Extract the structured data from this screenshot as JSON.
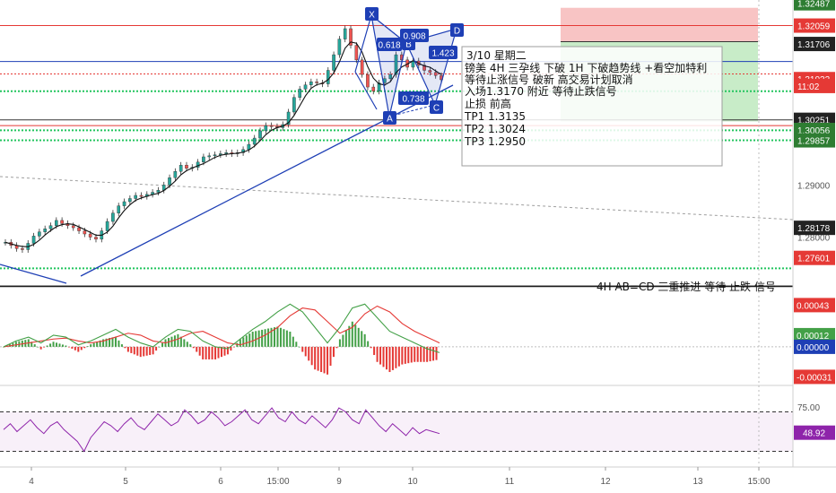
{
  "chart_data": [
    {
      "panel": "price",
      "type": "candlestick",
      "title": "",
      "x_ticks": [
        "4",
        "5",
        "6",
        "15:00",
        "9",
        "10",
        "11",
        "12",
        "13",
        "15:00"
      ],
      "y_ticks": [
        "1.29000",
        "1.28000"
      ],
      "ylim": [
        1.2708,
        1.3255
      ],
      "price_tags": [
        {
          "value": 1.32487,
          "label": "1.32487",
          "color": "#2e7d32"
        },
        {
          "value": 1.32059,
          "label": "1.32059",
          "color": "#e53935"
        },
        {
          "value": 1.31706,
          "label": "1.31706",
          "color": "#222222"
        },
        {
          "value": 1.31032,
          "label": "1.31032",
          "color": "#e53935"
        },
        {
          "value": 1.309,
          "label": "11:02",
          "color": "#e53935"
        },
        {
          "value": 1.30251,
          "label": "1.30251",
          "color": "#222222"
        },
        {
          "value": 1.30056,
          "label": "1.30056",
          "color": "#2e7d32"
        },
        {
          "value": 1.29857,
          "label": "1.29857",
          "color": "#2e7d32"
        },
        {
          "value": 1.28178,
          "label": "1.28178",
          "color": "#222222"
        },
        {
          "value": 1.27601,
          "label": "1.27601",
          "color": "#e53935"
        }
      ],
      "pattern": {
        "points": [
          "X",
          "A",
          "B",
          "C",
          "D"
        ],
        "ratios": [
          "0.618",
          "0.908",
          "1.423",
          "0.738"
        ]
      },
      "annotation": {
        "lines": [
          "3/10 星期二",
          "镑美  4H 三孕线 下破  1H 下破趋势线 +看空加特利",
          " 等待止涨信号  破新 高交易计划取消",
          " 入场1.3170 附近  等待止跌信号",
          " 止损 前高",
          " TP1   1.3135",
          "TP2   1.3024",
          "TP3    1.2950"
        ]
      },
      "bottom_text": "4H  AB=CD  三重推进 等待 止跌 信号",
      "series": [
        {
          "values": [
            1.279,
            1.2784,
            1.2778,
            1.2776,
            1.2788,
            1.2802,
            1.281,
            1.2816,
            1.2822,
            1.2832,
            1.2826,
            1.2822,
            1.2818,
            1.2812,
            1.2806,
            1.28,
            1.2796,
            1.2812,
            1.283,
            1.2846,
            1.286,
            1.2868,
            1.2874,
            1.288,
            1.2878,
            1.2882,
            1.2886,
            1.289,
            1.29,
            1.2914,
            1.2926,
            1.2938,
            1.2932,
            1.2934,
            1.2944,
            1.2954,
            1.2956,
            1.2958,
            1.296,
            1.2962,
            1.296,
            1.2962,
            1.2968,
            1.2978,
            1.299,
            1.3004,
            1.3014,
            1.3012,
            1.301,
            1.3016,
            1.304,
            1.3068,
            1.3084,
            1.3092,
            1.3098,
            1.3096,
            1.3094,
            1.312,
            1.315,
            1.318,
            1.32,
            1.3168,
            1.314,
            1.3112,
            1.3088,
            1.308,
            1.3096,
            1.3104,
            1.3112,
            1.315,
            1.314,
            1.3126,
            1.3138,
            1.313,
            1.312,
            1.3116,
            1.311,
            1.3102
          ]
        }
      ]
    },
    {
      "panel": "macd",
      "type": "line",
      "y_ticks": [
        "0.00043",
        "0.00012",
        "0.00000",
        "-0.00031"
      ],
      "y_values": [
        0.00043,
        0.00012,
        0.0,
        -0.00031
      ],
      "ylim": [
        -0.00038,
        0.0006
      ],
      "series": [
        {
          "color": "#e53935",
          "values": [
            0.0,
            2e-05,
            4e-05,
            6e-05,
            8e-05,
            9e-05,
            6e-05,
            4e-05,
            6e-05,
            0.0001,
            0.00014,
            0.00012,
            6e-05,
            4e-05,
            8e-05,
            0.00014,
            0.00016,
            0.0001,
            4e-05,
            2e-05,
            6e-05,
            0.00012,
            0.0002,
            0.00032,
            0.0004,
            0.00038,
            0.00026,
            0.00014,
            0.0002,
            0.00034,
            0.00042,
            0.00036,
            0.00024,
            0.00016,
            0.0001,
            4e-05
          ]
        },
        {
          "color": "#43a047",
          "values": [
            0.0,
            6e-05,
            0.0001,
            4e-05,
            0.00012,
            0.0001,
            2e-05,
            6e-05,
            0.00012,
            0.00018,
            0.0001,
            4e-05,
            0.0,
            0.0001,
            0.00018,
            0.00016,
            6e-05,
            0.0,
            -2e-05,
            8e-05,
            0.00018,
            0.00026,
            0.00036,
            0.00044,
            0.00036,
            0.0002,
            4e-05,
            0.0002,
            0.0004,
            0.00044,
            0.0003,
            0.00016,
            0.0001,
            4e-05,
            -2e-05,
            -6e-05
          ]
        }
      ]
    },
    {
      "panel": "rsi",
      "type": "line",
      "y_ticks": [
        "75.00"
      ],
      "current_value": "48.92",
      "ylim": [
        15,
        95
      ],
      "levels": [
        70,
        30
      ],
      "series": [
        {
          "color": "#8e24aa",
          "values": [
            52,
            58,
            50,
            56,
            62,
            54,
            48,
            56,
            60,
            52,
            46,
            40,
            30,
            44,
            52,
            60,
            56,
            50,
            58,
            64,
            56,
            52,
            60,
            68,
            62,
            56,
            60,
            72,
            66,
            58,
            62,
            70,
            64,
            56,
            60,
            66,
            72,
            62,
            58,
            66,
            74,
            64,
            60,
            70,
            62,
            58,
            66,
            60,
            54,
            62,
            74,
            70,
            62,
            58,
            72,
            64,
            56,
            50,
            58,
            52,
            46,
            54,
            48,
            52,
            50,
            48
          ]
        }
      ]
    }
  ],
  "colors": {
    "red_line": "#e53935",
    "blue_line": "#1e3fb5",
    "green_dotted": "#22c55e",
    "pattern_label_bg": "#1e3fb5",
    "tp_zone": "#c8ecc8",
    "sl_zone": "#f8c4c4"
  }
}
